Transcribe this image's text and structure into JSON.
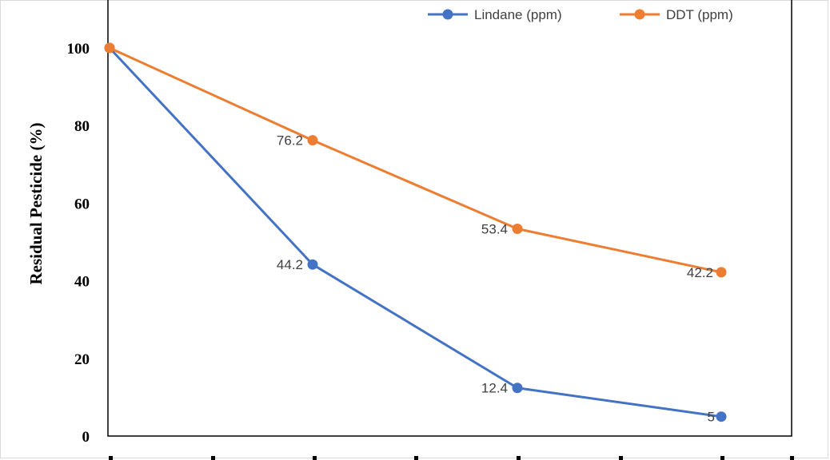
{
  "chart_data": {
    "type": "line",
    "ylabel": "Residual Pesticide (%)",
    "ylim": [
      0,
      110
    ],
    "yticks": [
      0,
      20,
      40,
      60,
      80,
      100
    ],
    "x": [
      0,
      1,
      2,
      3
    ],
    "grid": false,
    "legend_position": "top-right",
    "series": [
      {
        "name": "Lindane (ppm)",
        "color": "#4472c4",
        "values": [
          100,
          44.2,
          12.4,
          5
        ],
        "data_labels": [
          "",
          "44.2",
          "12.4",
          "5"
        ]
      },
      {
        "name": "DDT (ppm)",
        "color": "#ed7d31",
        "values": [
          100,
          76.2,
          53.4,
          42.2
        ],
        "data_labels": [
          "",
          "76.2",
          "53.4",
          "42.2"
        ]
      }
    ]
  }
}
